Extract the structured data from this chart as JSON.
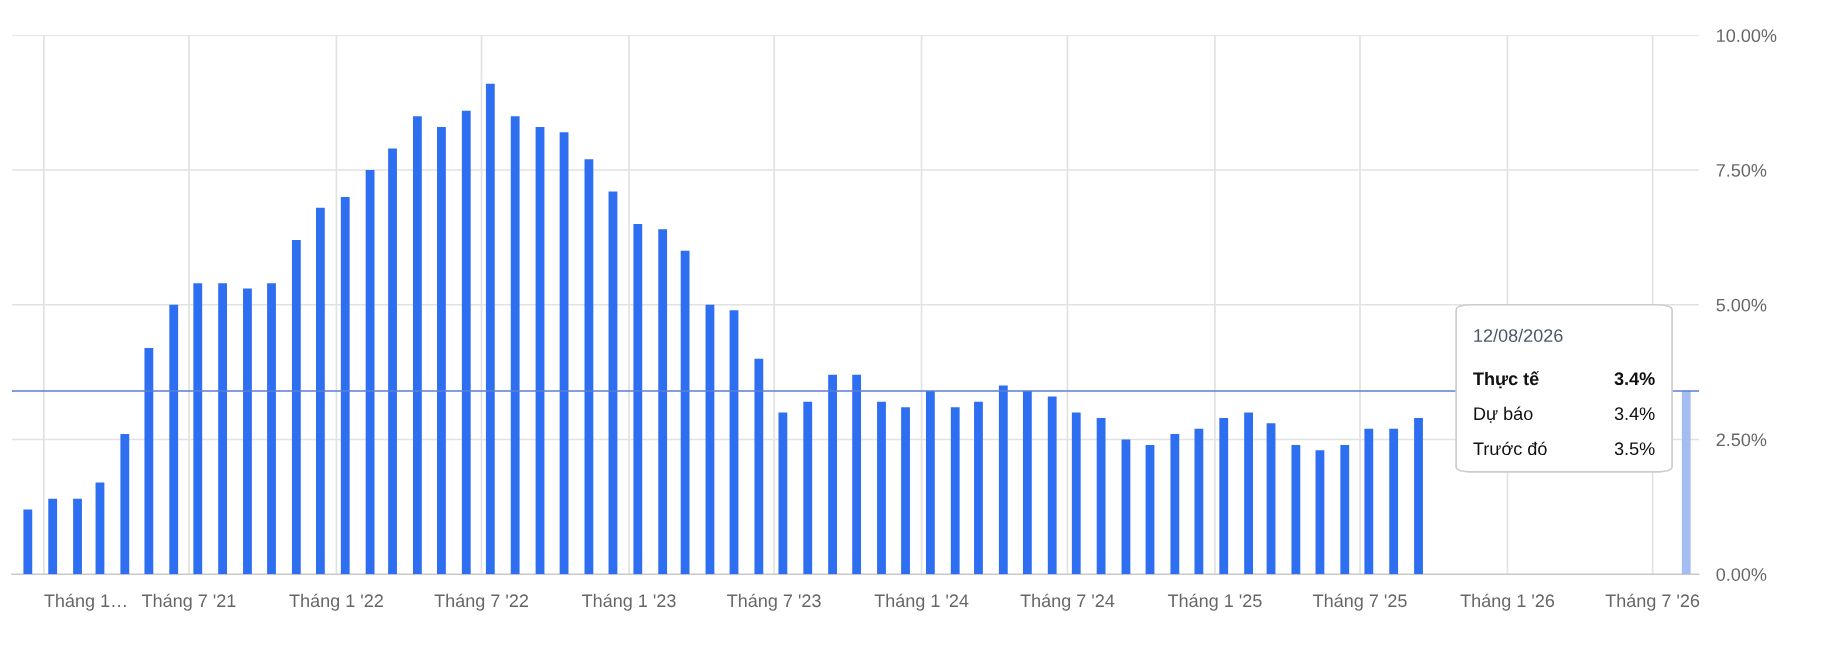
{
  "chart_data": {
    "type": "bar",
    "x": [
      "2020-12-12",
      "2021-01-12",
      "2021-02-12",
      "2021-03-12",
      "2021-04-12",
      "2021-05-12",
      "2021-06-12",
      "2021-07-12",
      "2021-08-12",
      "2021-09-12",
      "2021-10-12",
      "2021-11-12",
      "2021-12-12",
      "2022-01-12",
      "2022-02-12",
      "2022-03-12",
      "2022-04-12",
      "2022-05-12",
      "2022-06-12",
      "2022-07-12",
      "2022-08-12",
      "2022-09-12",
      "2022-10-12",
      "2022-11-12",
      "2022-12-12",
      "2023-01-12",
      "2023-02-12",
      "2023-03-12",
      "2023-04-12",
      "2023-05-12",
      "2023-06-12",
      "2023-07-12",
      "2023-08-12",
      "2023-09-12",
      "2023-10-12",
      "2023-11-12",
      "2023-12-12",
      "2024-01-12",
      "2024-02-12",
      "2024-03-12",
      "2024-04-12",
      "2024-05-12",
      "2024-06-12",
      "2024-07-12",
      "2024-08-12",
      "2024-09-12",
      "2024-10-12",
      "2024-11-12",
      "2024-12-12",
      "2025-01-12",
      "2025-02-12",
      "2025-03-12",
      "2025-04-12",
      "2025-05-12",
      "2025-06-12",
      "2025-07-12",
      "2025-08-12",
      "2025-09-12",
      "2025-10-12",
      "2025-11-12",
      "2025-12-12",
      "2026-01-12",
      "2026-02-12",
      "2026-03-12",
      "2026-04-12",
      "2026-05-12",
      "2026-06-12",
      "2026-07-12",
      "2026-08-12"
    ],
    "values": [
      1.2,
      1.4,
      1.4,
      1.7,
      2.6,
      4.2,
      5.0,
      5.4,
      5.4,
      5.3,
      5.4,
      6.2,
      6.8,
      7.0,
      7.5,
      7.9,
      8.5,
      8.3,
      8.6,
      9.1,
      8.5,
      8.3,
      8.2,
      7.7,
      7.1,
      6.5,
      6.4,
      6.0,
      5.0,
      4.9,
      4.0,
      3.0,
      3.2,
      3.7,
      3.7,
      3.2,
      3.1,
      3.4,
      3.1,
      3.2,
      3.5,
      3.4,
      3.3,
      3.0,
      2.9,
      2.5,
      2.4,
      2.6,
      2.7,
      2.9,
      3.0,
      2.8,
      2.4,
      2.3,
      2.4,
      2.7,
      2.7,
      2.9,
      null,
      null,
      null,
      null,
      null,
      null,
      null,
      null,
      null,
      null,
      3.4
    ],
    "colors": [
      "#2e6ef0",
      "#2e6ef0",
      "#2e6ef0",
      "#2e6ef0",
      "#2e6ef0",
      "#2e6ef0",
      "#2e6ef0",
      "#2e6ef0",
      "#2e6ef0",
      "#2e6ef0",
      "#2e6ef0",
      "#2e6ef0",
      "#2e6ef0",
      "#2e6ef0",
      "#2e6ef0",
      "#2e6ef0",
      "#2e6ef0",
      "#2e6ef0",
      "#2e6ef0",
      "#2e6ef0",
      "#2e6ef0",
      "#2e6ef0",
      "#2e6ef0",
      "#2e6ef0",
      "#2e6ef0",
      "#2e6ef0",
      "#2e6ef0",
      "#2e6ef0",
      "#2e6ef0",
      "#2e6ef0",
      "#2e6ef0",
      "#2e6ef0",
      "#2e6ef0",
      "#2e6ef0",
      "#2e6ef0",
      "#2e6ef0",
      "#2e6ef0",
      "#2e6ef0",
      "#2e6ef0",
      "#2e6ef0",
      "#2e6ef0",
      "#2e6ef0",
      "#2e6ef0",
      "#2e6ef0",
      "#2e6ef0",
      "#2e6ef0",
      "#2e6ef0",
      "#2e6ef0",
      "#2e6ef0",
      "#2e6ef0",
      "#2e6ef0",
      "#2e6ef0",
      "#2e6ef0",
      "#2e6ef0",
      "#2e6ef0",
      "#2e6ef0",
      "#2e6ef0",
      "#2e6ef0",
      "#2e6ef0",
      "#2e6ef0",
      "#2e6ef0",
      "#2e6ef0",
      "#2e6ef0",
      "#2e6ef0",
      "#2e6ef0",
      "#2e6ef0",
      "#2e6ef0",
      "#2e6ef0",
      "#a3bdf3"
    ],
    "xlim": [
      "2020-11-22",
      "2026-08-28"
    ],
    "xticks": [
      {
        "value": "2021-01-01",
        "label": "Tháng 1…"
      },
      {
        "value": "2021-07-01",
        "label": "Tháng 7 '21"
      },
      {
        "value": "2022-01-01",
        "label": "Tháng 1 '22"
      },
      {
        "value": "2022-07-01",
        "label": "Tháng 7 '22"
      },
      {
        "value": "2023-01-01",
        "label": "Tháng 1 '23"
      },
      {
        "value": "2023-07-01",
        "label": "Tháng 7 '23"
      },
      {
        "value": "2024-01-01",
        "label": "Tháng 1 '24"
      },
      {
        "value": "2024-07-01",
        "label": "Tháng 7 '24"
      },
      {
        "value": "2025-01-01",
        "label": "Tháng 1 '25"
      },
      {
        "value": "2025-07-01",
        "label": "Tháng 7 '25"
      },
      {
        "value": "2026-01-01",
        "label": "Tháng 1 '26"
      },
      {
        "value": "2026-07-01",
        "label": "Tháng 7 '26"
      }
    ],
    "ylim": [
      0,
      10
    ],
    "yticks": [
      {
        "value": 0,
        "label": "0.00%"
      },
      {
        "value": 2.5,
        "label": "2.50%"
      },
      {
        "value": 5,
        "label": "5.00%"
      },
      {
        "value": 7.5,
        "label": "7.50%"
      },
      {
        "value": 10,
        "label": "10.00%"
      }
    ],
    "grid": true,
    "ref_lines": [
      {
        "axis": "y",
        "value": 3.4,
        "color": "#5b7fd6"
      }
    ],
    "annotations": [
      "12/08/2026",
      "Thực tế",
      "3.4%",
      "Dự báo",
      "3.4%",
      "Trước đó",
      "3.5%"
    ]
  }
}
